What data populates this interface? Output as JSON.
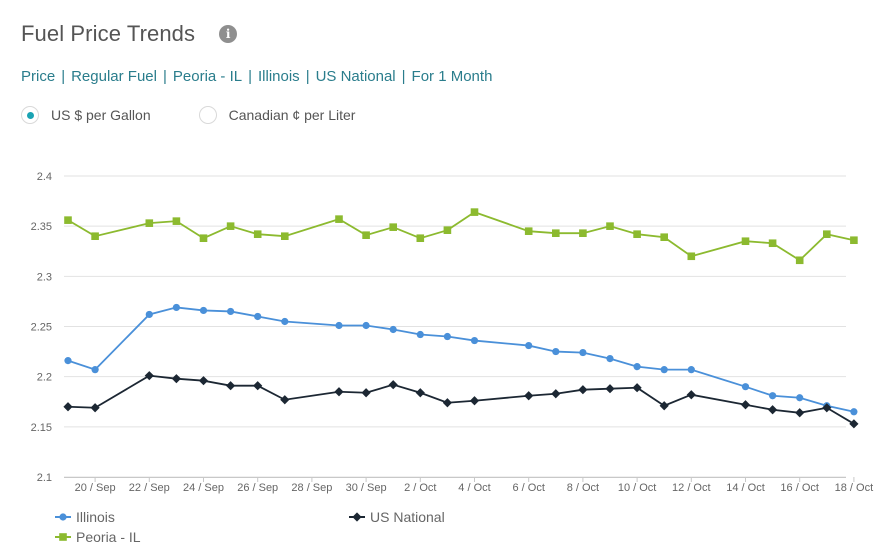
{
  "header": {
    "title": "Fuel Price Trends",
    "info_icon": "info-circle-icon"
  },
  "breadcrumb": [
    "Price",
    "Regular Fuel",
    "Peoria - IL",
    "Illinois",
    "US National",
    "For 1 Month"
  ],
  "breadcrumb_separator": "|",
  "units": {
    "option_1": "US $ per Gallon",
    "option_2": "Canadian ¢ per Liter",
    "selected": "US $ per Gallon"
  },
  "colors": {
    "illinois": "#4a90d9",
    "us_national": "#1c2733",
    "peoria": "#8cba2f",
    "accent": "#2a7d8c"
  },
  "chart_data": {
    "type": "line",
    "title": "",
    "xlabel": "",
    "ylabel": "",
    "ylim": [
      2.1,
      2.4
    ],
    "yticks": [
      "2.1",
      "2.15",
      "2.2",
      "2.25",
      "2.3",
      "2.35",
      "2.4"
    ],
    "xticks": [
      "20 / Sep",
      "22 / Sep",
      "24 / Sep",
      "26 / Sep",
      "28 / Sep",
      "30 / Sep",
      "2 / Oct",
      "4 / Oct",
      "6 / Oct",
      "8 / Oct",
      "10 / Oct",
      "12 / Oct",
      "14 / Oct",
      "16 / Oct",
      "18 / Oct"
    ],
    "grid": true,
    "legend_position": "bottom-left",
    "series": [
      {
        "name": "Illinois",
        "marker": "circle",
        "color": "#4a90d9",
        "points": [
          [
            "2023-09-19",
            2.216
          ],
          [
            "2023-09-20",
            2.207
          ],
          [
            "2023-09-22",
            2.262
          ],
          [
            "2023-09-23",
            2.269
          ],
          [
            "2023-09-24",
            2.266
          ],
          [
            "2023-09-25",
            2.265
          ],
          [
            "2023-09-26",
            2.26
          ],
          [
            "2023-09-27",
            2.255
          ],
          [
            "2023-09-29",
            2.251
          ],
          [
            "2023-09-30",
            2.251
          ],
          [
            "2023-10-01",
            2.247
          ],
          [
            "2023-10-02",
            2.242
          ],
          [
            "2023-10-03",
            2.24
          ],
          [
            "2023-10-04",
            2.236
          ],
          [
            "2023-10-06",
            2.231
          ],
          [
            "2023-10-07",
            2.225
          ],
          [
            "2023-10-08",
            2.224
          ],
          [
            "2023-10-09",
            2.218
          ],
          [
            "2023-10-10",
            2.21
          ],
          [
            "2023-10-11",
            2.207
          ],
          [
            "2023-10-12",
            2.207
          ],
          [
            "2023-10-14",
            2.19
          ],
          [
            "2023-10-15",
            2.181
          ],
          [
            "2023-10-16",
            2.179
          ],
          [
            "2023-10-17",
            2.171
          ],
          [
            "2023-10-18",
            2.165
          ]
        ]
      },
      {
        "name": "US National",
        "marker": "diamond",
        "color": "#1c2733",
        "points": [
          [
            "2023-09-19",
            2.17
          ],
          [
            "2023-09-20",
            2.169
          ],
          [
            "2023-09-22",
            2.201
          ],
          [
            "2023-09-23",
            2.198
          ],
          [
            "2023-09-24",
            2.196
          ],
          [
            "2023-09-25",
            2.191
          ],
          [
            "2023-09-26",
            2.191
          ],
          [
            "2023-09-27",
            2.177
          ],
          [
            "2023-09-29",
            2.185
          ],
          [
            "2023-09-30",
            2.184
          ],
          [
            "2023-10-01",
            2.192
          ],
          [
            "2023-10-02",
            2.184
          ],
          [
            "2023-10-03",
            2.174
          ],
          [
            "2023-10-04",
            2.176
          ],
          [
            "2023-10-06",
            2.181
          ],
          [
            "2023-10-07",
            2.183
          ],
          [
            "2023-10-08",
            2.187
          ],
          [
            "2023-10-09",
            2.188
          ],
          [
            "2023-10-10",
            2.189
          ],
          [
            "2023-10-11",
            2.171
          ],
          [
            "2023-10-12",
            2.182
          ],
          [
            "2023-10-14",
            2.172
          ],
          [
            "2023-10-15",
            2.167
          ],
          [
            "2023-10-16",
            2.164
          ],
          [
            "2023-10-17",
            2.169
          ],
          [
            "2023-10-18",
            2.153
          ]
        ]
      },
      {
        "name": "Peoria - IL",
        "marker": "square",
        "color": "#8cba2f",
        "points": [
          [
            "2023-09-19",
            2.356
          ],
          [
            "2023-09-20",
            2.34
          ],
          [
            "2023-09-22",
            2.353
          ],
          [
            "2023-09-23",
            2.355
          ],
          [
            "2023-09-24",
            2.338
          ],
          [
            "2023-09-25",
            2.35
          ],
          [
            "2023-09-26",
            2.342
          ],
          [
            "2023-09-27",
            2.34
          ],
          [
            "2023-09-29",
            2.357
          ],
          [
            "2023-09-30",
            2.341
          ],
          [
            "2023-10-01",
            2.349
          ],
          [
            "2023-10-02",
            2.338
          ],
          [
            "2023-10-03",
            2.346
          ],
          [
            "2023-10-04",
            2.364
          ],
          [
            "2023-10-06",
            2.345
          ],
          [
            "2023-10-07",
            2.343
          ],
          [
            "2023-10-08",
            2.343
          ],
          [
            "2023-10-09",
            2.35
          ],
          [
            "2023-10-10",
            2.342
          ],
          [
            "2023-10-11",
            2.339
          ],
          [
            "2023-10-12",
            2.32
          ],
          [
            "2023-10-14",
            2.335
          ],
          [
            "2023-10-15",
            2.333
          ],
          [
            "2023-10-16",
            2.316
          ],
          [
            "2023-10-17",
            2.342
          ],
          [
            "2023-10-18",
            2.336
          ]
        ]
      }
    ]
  }
}
